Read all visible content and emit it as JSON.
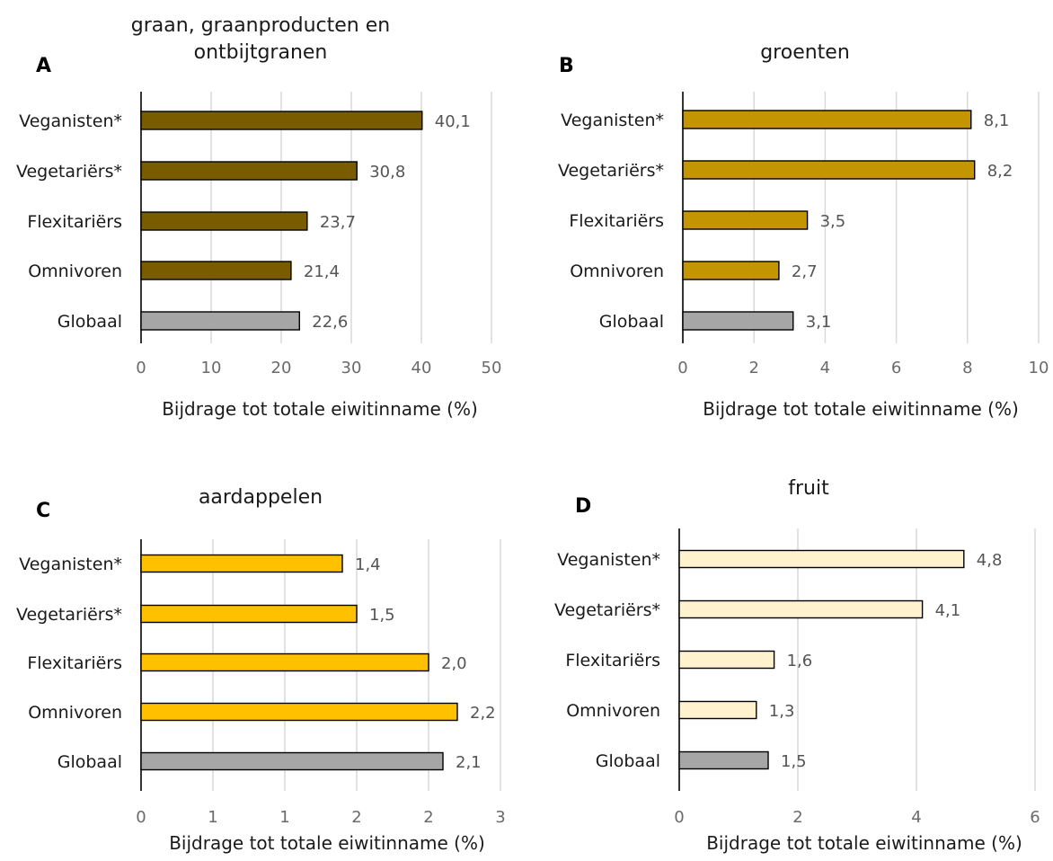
{
  "chart_data": [
    {
      "panel": "A",
      "type": "bar",
      "orientation": "horizontal",
      "title": "graan, graanproducten en ontbijtgranen",
      "title_lines": [
        "graan, graanproducten en",
        "ontbijtgranen"
      ],
      "categories": [
        "Veganisten*",
        "Vegetariërs*",
        "Flexitariërs",
        "Omnivoren",
        "Globaal"
      ],
      "values": [
        40.1,
        30.8,
        23.7,
        21.4,
        22.6
      ],
      "value_labels": [
        "40,1",
        "30,8",
        "23,7",
        "21,4",
        "22,6"
      ],
      "xlabel": "Bijdrage tot totale eiwitinname (%)",
      "xlim": [
        0,
        50
      ],
      "ticks": [
        0,
        10,
        20,
        30,
        40,
        50
      ],
      "tick_labels": [
        "0",
        "10",
        "20",
        "30",
        "40",
        "50"
      ],
      "grid": true,
      "bar_color": "#7a5c00",
      "global_color": "#a6a6a6"
    },
    {
      "panel": "B",
      "type": "bar",
      "orientation": "horizontal",
      "title": "groenten",
      "title_lines": [
        "groenten"
      ],
      "categories": [
        "Veganisten*",
        "Vegetariërs*",
        "Flexitariërs",
        "Omnivoren",
        "Globaal"
      ],
      "values": [
        8.1,
        8.2,
        3.5,
        2.7,
        3.1
      ],
      "value_labels": [
        "8,1",
        "8,2",
        "3,5",
        "2,7",
        "3,1"
      ],
      "xlabel": "Bijdrage tot totale eiwitinname (%)",
      "xlim": [
        0,
        10
      ],
      "ticks": [
        0,
        2,
        4,
        6,
        8,
        10
      ],
      "tick_labels": [
        "0",
        "2",
        "4",
        "6",
        "8",
        "10"
      ],
      "grid": true,
      "bar_color": "#c39500",
      "global_color": "#a6a6a6"
    },
    {
      "panel": "C",
      "type": "bar",
      "orientation": "horizontal",
      "title": "aardappelen",
      "title_lines": [
        "aardappelen"
      ],
      "categories": [
        "Veganisten*",
        "Vegetariërs*",
        "Flexitariërs",
        "Omnivoren",
        "Globaal"
      ],
      "values": [
        1.4,
        1.5,
        2.0,
        2.2,
        2.1
      ],
      "value_labels": [
        "1,4",
        "1,5",
        "2,0",
        "2,2",
        "2,1"
      ],
      "xlabel": "Bijdrage tot totale eiwitinname (%)",
      "xlim": [
        0,
        2.5
      ],
      "ticks": [
        0,
        0.5,
        1,
        1.5,
        2,
        2.5
      ],
      "tick_labels": [
        "0",
        "1",
        "1",
        "2",
        "2",
        "3"
      ],
      "grid": true,
      "bar_color": "#ffc000",
      "global_color": "#a6a6a6"
    },
    {
      "panel": "D",
      "type": "bar",
      "orientation": "horizontal",
      "title": "fruit",
      "title_lines": [
        "fruit"
      ],
      "categories": [
        "Veganisten*",
        "Vegetariërs*",
        "Flexitariërs",
        "Omnivoren",
        "Globaal"
      ],
      "values": [
        4.8,
        4.1,
        1.6,
        1.3,
        1.5
      ],
      "value_labels": [
        "4,8",
        "4,1",
        "1,6",
        "1,3",
        "1,5"
      ],
      "xlabel": "Bijdrage tot totale eiwitinname (%)",
      "xlim": [
        0,
        6
      ],
      "ticks": [
        0,
        2,
        4,
        6
      ],
      "tick_labels": [
        "0",
        "2",
        "4",
        "6"
      ],
      "grid": true,
      "bar_color": "#fff2cc",
      "global_color": "#a6a6a6"
    }
  ],
  "colors": {
    "bar_outline": "#000000",
    "gridline": "#d9d9d9",
    "axis_line": "#000000"
  }
}
